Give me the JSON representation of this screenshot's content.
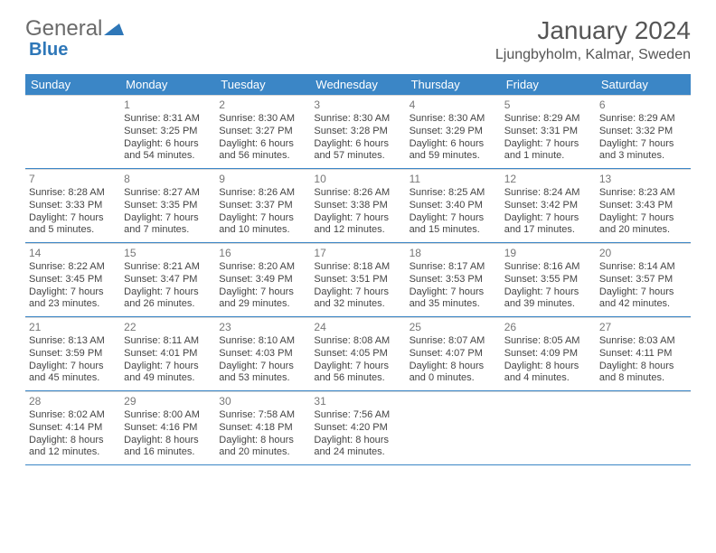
{
  "logo": {
    "text1": "General",
    "text2": "Blue"
  },
  "title": "January 2024",
  "location": "Ljungbyholm, Kalmar, Sweden",
  "colors": {
    "header_bg": "#3b86c6",
    "header_text": "#ffffff",
    "logo_gray": "#6a6a6a",
    "logo_blue": "#2e77b8",
    "text": "#444444",
    "daynum": "#777777",
    "row_border": "#3b86c6",
    "cell_border": "#d8d8d8",
    "background": "#ffffff"
  },
  "dow": [
    "Sunday",
    "Monday",
    "Tuesday",
    "Wednesday",
    "Thursday",
    "Friday",
    "Saturday"
  ],
  "weeks": [
    [
      null,
      {
        "n": "1",
        "sr": "Sunrise: 8:31 AM",
        "ss": "Sunset: 3:25 PM",
        "dl": "Daylight: 6 hours and 54 minutes."
      },
      {
        "n": "2",
        "sr": "Sunrise: 8:30 AM",
        "ss": "Sunset: 3:27 PM",
        "dl": "Daylight: 6 hours and 56 minutes."
      },
      {
        "n": "3",
        "sr": "Sunrise: 8:30 AM",
        "ss": "Sunset: 3:28 PM",
        "dl": "Daylight: 6 hours and 57 minutes."
      },
      {
        "n": "4",
        "sr": "Sunrise: 8:30 AM",
        "ss": "Sunset: 3:29 PM",
        "dl": "Daylight: 6 hours and 59 minutes."
      },
      {
        "n": "5",
        "sr": "Sunrise: 8:29 AM",
        "ss": "Sunset: 3:31 PM",
        "dl": "Daylight: 7 hours and 1 minute."
      },
      {
        "n": "6",
        "sr": "Sunrise: 8:29 AM",
        "ss": "Sunset: 3:32 PM",
        "dl": "Daylight: 7 hours and 3 minutes."
      }
    ],
    [
      {
        "n": "7",
        "sr": "Sunrise: 8:28 AM",
        "ss": "Sunset: 3:33 PM",
        "dl": "Daylight: 7 hours and 5 minutes."
      },
      {
        "n": "8",
        "sr": "Sunrise: 8:27 AM",
        "ss": "Sunset: 3:35 PM",
        "dl": "Daylight: 7 hours and 7 minutes."
      },
      {
        "n": "9",
        "sr": "Sunrise: 8:26 AM",
        "ss": "Sunset: 3:37 PM",
        "dl": "Daylight: 7 hours and 10 minutes."
      },
      {
        "n": "10",
        "sr": "Sunrise: 8:26 AM",
        "ss": "Sunset: 3:38 PM",
        "dl": "Daylight: 7 hours and 12 minutes."
      },
      {
        "n": "11",
        "sr": "Sunrise: 8:25 AM",
        "ss": "Sunset: 3:40 PM",
        "dl": "Daylight: 7 hours and 15 minutes."
      },
      {
        "n": "12",
        "sr": "Sunrise: 8:24 AM",
        "ss": "Sunset: 3:42 PM",
        "dl": "Daylight: 7 hours and 17 minutes."
      },
      {
        "n": "13",
        "sr": "Sunrise: 8:23 AM",
        "ss": "Sunset: 3:43 PM",
        "dl": "Daylight: 7 hours and 20 minutes."
      }
    ],
    [
      {
        "n": "14",
        "sr": "Sunrise: 8:22 AM",
        "ss": "Sunset: 3:45 PM",
        "dl": "Daylight: 7 hours and 23 minutes."
      },
      {
        "n": "15",
        "sr": "Sunrise: 8:21 AM",
        "ss": "Sunset: 3:47 PM",
        "dl": "Daylight: 7 hours and 26 minutes."
      },
      {
        "n": "16",
        "sr": "Sunrise: 8:20 AM",
        "ss": "Sunset: 3:49 PM",
        "dl": "Daylight: 7 hours and 29 minutes."
      },
      {
        "n": "17",
        "sr": "Sunrise: 8:18 AM",
        "ss": "Sunset: 3:51 PM",
        "dl": "Daylight: 7 hours and 32 minutes."
      },
      {
        "n": "18",
        "sr": "Sunrise: 8:17 AM",
        "ss": "Sunset: 3:53 PM",
        "dl": "Daylight: 7 hours and 35 minutes."
      },
      {
        "n": "19",
        "sr": "Sunrise: 8:16 AM",
        "ss": "Sunset: 3:55 PM",
        "dl": "Daylight: 7 hours and 39 minutes."
      },
      {
        "n": "20",
        "sr": "Sunrise: 8:14 AM",
        "ss": "Sunset: 3:57 PM",
        "dl": "Daylight: 7 hours and 42 minutes."
      }
    ],
    [
      {
        "n": "21",
        "sr": "Sunrise: 8:13 AM",
        "ss": "Sunset: 3:59 PM",
        "dl": "Daylight: 7 hours and 45 minutes."
      },
      {
        "n": "22",
        "sr": "Sunrise: 8:11 AM",
        "ss": "Sunset: 4:01 PM",
        "dl": "Daylight: 7 hours and 49 minutes."
      },
      {
        "n": "23",
        "sr": "Sunrise: 8:10 AM",
        "ss": "Sunset: 4:03 PM",
        "dl": "Daylight: 7 hours and 53 minutes."
      },
      {
        "n": "24",
        "sr": "Sunrise: 8:08 AM",
        "ss": "Sunset: 4:05 PM",
        "dl": "Daylight: 7 hours and 56 minutes."
      },
      {
        "n": "25",
        "sr": "Sunrise: 8:07 AM",
        "ss": "Sunset: 4:07 PM",
        "dl": "Daylight: 8 hours and 0 minutes."
      },
      {
        "n": "26",
        "sr": "Sunrise: 8:05 AM",
        "ss": "Sunset: 4:09 PM",
        "dl": "Daylight: 8 hours and 4 minutes."
      },
      {
        "n": "27",
        "sr": "Sunrise: 8:03 AM",
        "ss": "Sunset: 4:11 PM",
        "dl": "Daylight: 8 hours and 8 minutes."
      }
    ],
    [
      {
        "n": "28",
        "sr": "Sunrise: 8:02 AM",
        "ss": "Sunset: 4:14 PM",
        "dl": "Daylight: 8 hours and 12 minutes."
      },
      {
        "n": "29",
        "sr": "Sunrise: 8:00 AM",
        "ss": "Sunset: 4:16 PM",
        "dl": "Daylight: 8 hours and 16 minutes."
      },
      {
        "n": "30",
        "sr": "Sunrise: 7:58 AM",
        "ss": "Sunset: 4:18 PM",
        "dl": "Daylight: 8 hours and 20 minutes."
      },
      {
        "n": "31",
        "sr": "Sunrise: 7:56 AM",
        "ss": "Sunset: 4:20 PM",
        "dl": "Daylight: 8 hours and 24 minutes."
      },
      null,
      null,
      null
    ]
  ]
}
